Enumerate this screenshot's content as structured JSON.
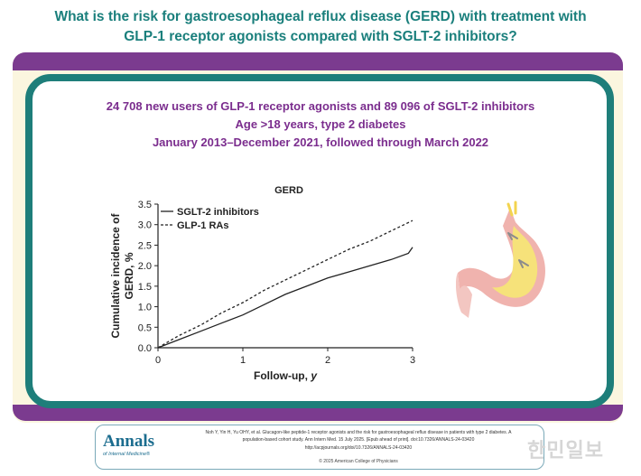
{
  "heading": {
    "line1": "What is the risk for gastroesophageal reflux disease (GERD) with treatment with",
    "line2": "GLP-1 receptor agonists compared with SGLT-2 inhibitors?"
  },
  "study": {
    "line1": "24 708 new users of GLP-1 receptor agonists and 89 096 of SGLT-2 inhibitors",
    "line2": "Age >18 years, type 2 diabetes",
    "line3": "January 2013–December 2021, followed through March 2022"
  },
  "colors": {
    "teal": "#1e7e7a",
    "purple": "#7b3b8f",
    "cream": "#fbf6df"
  },
  "chart_data": {
    "type": "line",
    "title": "GERD",
    "xlabel": "Follow-up, y",
    "ylabel": "Cumulative incidence of GERD, %",
    "xlim": [
      0,
      3
    ],
    "ylim": [
      0,
      3.5
    ],
    "xticks": [
      0,
      1,
      2,
      3
    ],
    "yticks": [
      0.0,
      0.5,
      1.0,
      1.5,
      2.0,
      2.5,
      3.0,
      3.5
    ],
    "grid": false,
    "legend_position": "top-left",
    "series": [
      {
        "name": "SGLT-2 inhibitors",
        "style": "solid",
        "x": [
          0,
          0.25,
          0.5,
          0.75,
          1.0,
          1.25,
          1.5,
          1.75,
          2.0,
          2.25,
          2.5,
          2.75,
          2.95,
          3.0
        ],
        "y": [
          0,
          0.2,
          0.4,
          0.6,
          0.8,
          1.05,
          1.3,
          1.5,
          1.7,
          1.85,
          2.0,
          2.15,
          2.3,
          2.45
        ]
      },
      {
        "name": "GLP-1 RAs",
        "style": "dashed",
        "x": [
          0,
          0.25,
          0.5,
          0.75,
          1.0,
          1.25,
          1.5,
          1.75,
          2.0,
          2.25,
          2.5,
          2.75,
          3.0
        ],
        "y": [
          0,
          0.3,
          0.55,
          0.85,
          1.1,
          1.4,
          1.65,
          1.9,
          2.15,
          2.4,
          2.6,
          2.85,
          3.1
        ]
      }
    ]
  },
  "footer": {
    "logo": "Annals",
    "logo_sub": "of Internal Medicine®",
    "citation_line1": "Noh Y, Yin H, Yu OHY, et al. Glucagon-like peptide-1 receptor agonists and the risk for gastroesophageal reflux disease in patients with type 2 diabetes. A",
    "citation_line2": "population-based cohort study. Ann Intern Med. 15 July 2025. [Epub ahead of print]. doi:10.7326/ANNALS-24-03420",
    "citation_line3": "http://acpjournals.org/doi/10.7326/ANNALS-24-03420",
    "copyright": "© 2025 American College of Physicians"
  },
  "watermark": "한민일보"
}
